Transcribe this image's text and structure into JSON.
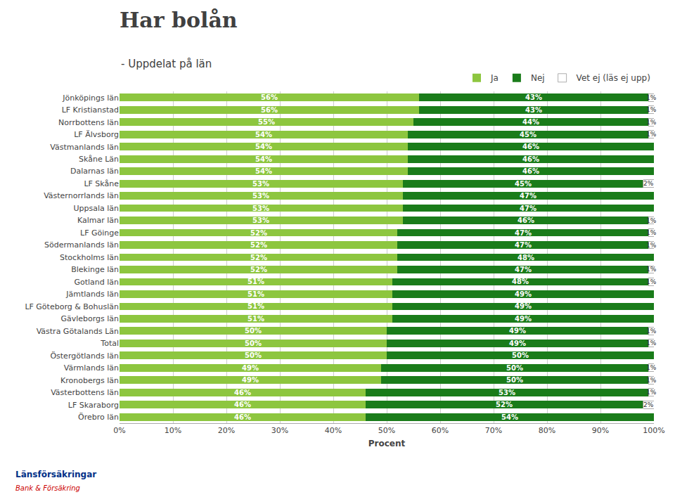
{
  "chart_data": {
    "type": "bar",
    "orientation": "horizontal",
    "stacked": true,
    "title": "Har bolån",
    "subtitle": "- Uppdelat på län",
    "x_label": "Procent",
    "categories": [
      "Jönköpings län",
      "LF Kristianstad",
      "Norrbottens län",
      "LF Älvsborg",
      "Västmanlands län",
      "Skåne Län",
      "Dalarnas län",
      "LF Skåne",
      "Västernorrlands län",
      "Uppsala län",
      "Kalmar län",
      "LF Göinge",
      "Södermanlands län",
      "Stockholms län",
      "Blekinge län",
      "Gotland län",
      "Jämtlands län",
      "LF Göteborg & Bohuslän",
      "Gävleborgs län",
      "Västra Götalands Län",
      "Total",
      "Östergötlands län",
      "Värmlands län",
      "Kronobergs län",
      "Västerbottens län",
      "LF Skaraborg",
      "Örebro län"
    ],
    "series": [
      {
        "name": "Ja",
        "color": "#8dc63f",
        "values": [
          56,
          56,
          55,
          54,
          54,
          54,
          54,
          53,
          53,
          53,
          53,
          52,
          52,
          52,
          52,
          51,
          51,
          51,
          51,
          50,
          50,
          50,
          49,
          49,
          46,
          46,
          46
        ],
        "value_labels": [
          "56%",
          "56%",
          "55%",
          "54%",
          "54%",
          "54%",
          "54%",
          "53%",
          "53%",
          "53%",
          "53%",
          "52%",
          "52%",
          "52%",
          "52%",
          "51%",
          "51%",
          "51%",
          "51%",
          "50%",
          "50%",
          "50%",
          "49%",
          "49%",
          "46%",
          "46%",
          "46%"
        ]
      },
      {
        "name": "Nej",
        "color": "#1a7c1a",
        "values": [
          43,
          43,
          44,
          45,
          46,
          46,
          46,
          45,
          47,
          47,
          46,
          47,
          47,
          48,
          47,
          48,
          49,
          49,
          49,
          49,
          49,
          50,
          50,
          50,
          53,
          52,
          54
        ],
        "value_labels": [
          "43%",
          "43%",
          "44%",
          "45%",
          "46%",
          "46%",
          "46%",
          "45%",
          "47%",
          "47%",
          "46%",
          "47%",
          "47%",
          "48%",
          "47%",
          "48%",
          "49%",
          "49%",
          "49%",
          "49%",
          "49%",
          "50%",
          "50%",
          "50%",
          "53%",
          "52%",
          "54%"
        ]
      },
      {
        "name": "Vet ej (läs ej upp)",
        "color": "#ffffff",
        "values": [
          1,
          1,
          1,
          1,
          0,
          0,
          0,
          2,
          0,
          0,
          1,
          1,
          1,
          0,
          1,
          1,
          0,
          0,
          0,
          1,
          1,
          0,
          1,
          1,
          1,
          2,
          0
        ],
        "value_labels": [
          "1%",
          "1%",
          "1%",
          "1%",
          null,
          null,
          null,
          "2%",
          null,
          null,
          "1%",
          "1%",
          "1%",
          null,
          "1%",
          "1%",
          null,
          null,
          null,
          "1%",
          "1%",
          null,
          "1%",
          "1%",
          "1%",
          "2%",
          null
        ]
      }
    ],
    "data_labels": true,
    "xlim": [
      0,
      100
    ],
    "xticks": [
      {
        "value": 0,
        "label": "0%"
      },
      {
        "value": 10,
        "label": "10%"
      },
      {
        "value": 20,
        "label": "20%"
      },
      {
        "value": 30,
        "label": "30%"
      },
      {
        "value": 40,
        "label": "40%"
      },
      {
        "value": 50,
        "label": "50%"
      },
      {
        "value": 60,
        "label": "60%"
      },
      {
        "value": 70,
        "label": "70%"
      },
      {
        "value": 80,
        "label": "80%"
      },
      {
        "value": 90,
        "label": "90%"
      },
      {
        "value": 100,
        "label": "100%"
      }
    ],
    "grid": true,
    "legend": "upper right",
    "annotations": [
      "Länsförsäkringar",
      "Bank & Försäkring"
    ]
  }
}
